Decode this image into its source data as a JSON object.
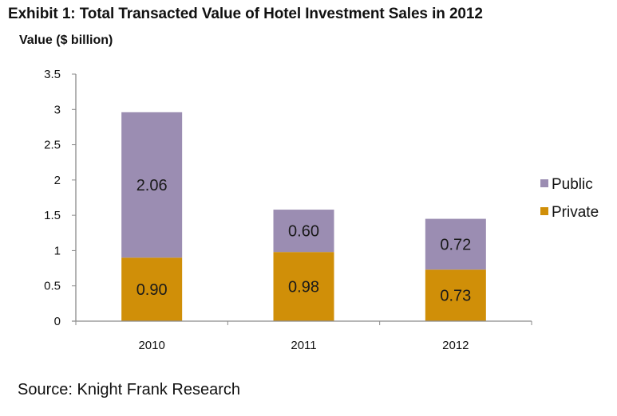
{
  "chart_data": {
    "type": "bar",
    "stacked": true,
    "title": "Exhibit 1: Total Transacted Value of Hotel Investment Sales in 2012",
    "xlabel": "",
    "ylabel": "Value ($ billion)",
    "ylim": [
      0,
      3.5
    ],
    "yticks": [
      0,
      0.5,
      1,
      1.5,
      2,
      2.5,
      3,
      3.5
    ],
    "ytick_labels": [
      "0",
      "0.5",
      "1",
      "1.5",
      "2",
      "2.5",
      "3",
      "3.5"
    ],
    "grid": false,
    "categories": [
      "2010",
      "2011",
      "2012"
    ],
    "series": [
      {
        "name": "Private",
        "color": "#D08F08",
        "values": [
          0.9,
          0.98,
          0.73
        ],
        "labels": [
          "0.90",
          "0.98",
          "0.73"
        ]
      },
      {
        "name": "Public",
        "color": "#9B8DB2",
        "values": [
          2.06,
          0.6,
          0.72
        ],
        "labels": [
          "2.06",
          "0.60",
          "0.72"
        ]
      }
    ],
    "legend": {
      "position": "right",
      "entries": [
        "Public",
        "Private"
      ]
    },
    "source": "Source: Knight Frank Research"
  }
}
